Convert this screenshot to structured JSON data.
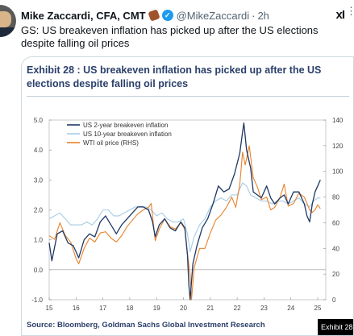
{
  "tweet": {
    "author_name": "Mike Zaccardi, CFA, CMT",
    "handle": "@MikeZaccardi",
    "separator": "·",
    "time": "2h",
    "grok_label": "xI",
    "text": "GS: US breakeven inflation has picked up after the US elections despite falling oil prices"
  },
  "icons": {
    "avatar": "avatar-photo",
    "emoji": "football-emoji",
    "verified": "verified-badge-icon",
    "grok": "grok-icon"
  },
  "colors": {
    "series_2y": "#1f3864",
    "series_10y": "#a7cce5",
    "series_oil": "#e8812a",
    "title": "#2a3f6a",
    "verified": "#1d9bf0"
  },
  "card": {
    "exhibit_title": "Exhibit 28 : US breakeven inflation has picked up after the US elections despite falling oil prices",
    "source": "Source: Bloomberg, Goldman Sachs Global Investment Research",
    "exhibit_tag": "Exhibit 28"
  },
  "chart_data": {
    "type": "line",
    "title": "",
    "xlabel": "",
    "ylabel": "",
    "x_ticks": [
      "15",
      "16",
      "17",
      "18",
      "19",
      "20",
      "21",
      "22",
      "23",
      "24",
      "25"
    ],
    "y_left_ticks": [
      "5.0",
      "4.0",
      "3.0",
      "2.0",
      "1.0",
      "0.0",
      "-1.0"
    ],
    "y_right_ticks": [
      "140",
      "120",
      "100",
      "80",
      "60",
      "40",
      "20",
      "0"
    ],
    "ylim_left": [
      -1,
      5
    ],
    "ylim_right": [
      0,
      140
    ],
    "xlim": [
      2015,
      2025.3
    ],
    "legend_position": "top-left",
    "grid": false,
    "series": [
      {
        "name": "US 2-year breakeven inflation",
        "axis": "left",
        "color": "#1f3864",
        "points": [
          [
            2015.0,
            0.9
          ],
          [
            2015.1,
            0.3
          ],
          [
            2015.3,
            1.2
          ],
          [
            2015.5,
            1.3
          ],
          [
            2015.7,
            0.9
          ],
          [
            2015.9,
            0.8
          ],
          [
            2016.0,
            0.6
          ],
          [
            2016.1,
            0.4
          ],
          [
            2016.3,
            1.0
          ],
          [
            2016.5,
            1.2
          ],
          [
            2016.7,
            1.1
          ],
          [
            2016.9,
            1.6
          ],
          [
            2017.1,
            1.8
          ],
          [
            2017.3,
            1.5
          ],
          [
            2017.5,
            1.2
          ],
          [
            2017.7,
            1.5
          ],
          [
            2017.9,
            1.7
          ],
          [
            2018.1,
            1.9
          ],
          [
            2018.3,
            2.1
          ],
          [
            2018.5,
            2.1
          ],
          [
            2018.7,
            2.0
          ],
          [
            2018.85,
            1.6
          ],
          [
            2018.95,
            1.1
          ],
          [
            2019.1,
            1.5
          ],
          [
            2019.3,
            1.7
          ],
          [
            2019.5,
            1.4
          ],
          [
            2019.7,
            1.3
          ],
          [
            2019.9,
            1.6
          ],
          [
            2020.05,
            1.4
          ],
          [
            2020.15,
            0.5
          ],
          [
            2020.2,
            -0.5
          ],
          [
            2020.25,
            -1.0
          ],
          [
            2020.35,
            0.2
          ],
          [
            2020.5,
            0.8
          ],
          [
            2020.7,
            1.4
          ],
          [
            2020.9,
            1.7
          ],
          [
            2021.1,
            2.2
          ],
          [
            2021.3,
            2.8
          ],
          [
            2021.5,
            2.6
          ],
          [
            2021.7,
            2.7
          ],
          [
            2021.9,
            3.2
          ],
          [
            2022.1,
            3.9
          ],
          [
            2022.2,
            4.6
          ],
          [
            2022.25,
            4.9
          ],
          [
            2022.35,
            4.0
          ],
          [
            2022.5,
            3.4
          ],
          [
            2022.6,
            2.6
          ],
          [
            2022.75,
            2.5
          ],
          [
            2022.9,
            2.4
          ],
          [
            2023.1,
            2.8
          ],
          [
            2023.25,
            2.4
          ],
          [
            2023.4,
            2.2
          ],
          [
            2023.6,
            2.4
          ],
          [
            2023.75,
            2.5
          ],
          [
            2023.9,
            2.2
          ],
          [
            2024.1,
            2.6
          ],
          [
            2024.3,
            2.6
          ],
          [
            2024.5,
            2.2
          ],
          [
            2024.6,
            1.8
          ],
          [
            2024.7,
            1.6
          ],
          [
            2024.8,
            2.2
          ],
          [
            2024.9,
            2.6
          ],
          [
            2025.0,
            2.8
          ],
          [
            2025.1,
            3.0
          ]
        ]
      },
      {
        "name": "US 10-year breakeven inflation",
        "axis": "left",
        "color": "#a7cce5",
        "points": [
          [
            2015.0,
            1.7
          ],
          [
            2015.2,
            1.8
          ],
          [
            2015.4,
            1.9
          ],
          [
            2015.6,
            1.7
          ],
          [
            2015.8,
            1.5
          ],
          [
            2016.0,
            1.5
          ],
          [
            2016.2,
            1.5
          ],
          [
            2016.4,
            1.6
          ],
          [
            2016.6,
            1.5
          ],
          [
            2016.8,
            1.7
          ],
          [
            2017.0,
            2.0
          ],
          [
            2017.2,
            2.0
          ],
          [
            2017.4,
            1.8
          ],
          [
            2017.6,
            1.8
          ],
          [
            2017.8,
            1.9
          ],
          [
            2018.0,
            2.0
          ],
          [
            2018.2,
            2.1
          ],
          [
            2018.4,
            2.1
          ],
          [
            2018.6,
            2.1
          ],
          [
            2018.8,
            2.0
          ],
          [
            2019.0,
            1.8
          ],
          [
            2019.2,
            1.9
          ],
          [
            2019.4,
            1.7
          ],
          [
            2019.6,
            1.6
          ],
          [
            2019.8,
            1.6
          ],
          [
            2020.0,
            1.7
          ],
          [
            2020.15,
            1.2
          ],
          [
            2020.25,
            0.6
          ],
          [
            2020.4,
            1.1
          ],
          [
            2020.6,
            1.5
          ],
          [
            2020.8,
            1.7
          ],
          [
            2021.0,
            2.1
          ],
          [
            2021.2,
            2.3
          ],
          [
            2021.4,
            2.4
          ],
          [
            2021.6,
            2.3
          ],
          [
            2021.8,
            2.5
          ],
          [
            2022.0,
            2.5
          ],
          [
            2022.2,
            2.9
          ],
          [
            2022.35,
            2.8
          ],
          [
            2022.5,
            2.5
          ],
          [
            2022.7,
            2.4
          ],
          [
            2022.9,
            2.3
          ],
          [
            2023.1,
            2.3
          ],
          [
            2023.3,
            2.2
          ],
          [
            2023.5,
            2.3
          ],
          [
            2023.7,
            2.3
          ],
          [
            2023.9,
            2.2
          ],
          [
            2024.1,
            2.3
          ],
          [
            2024.3,
            2.4
          ],
          [
            2024.5,
            2.2
          ],
          [
            2024.7,
            2.1
          ],
          [
            2024.85,
            2.3
          ],
          [
            2025.0,
            2.4
          ],
          [
            2025.1,
            2.4
          ]
        ]
      },
      {
        "name": "WTI oil price (RHS)",
        "axis": "right",
        "color": "#e8812a",
        "points": [
          [
            2015.0,
            50
          ],
          [
            2015.2,
            47
          ],
          [
            2015.4,
            60
          ],
          [
            2015.6,
            50
          ],
          [
            2015.8,
            45
          ],
          [
            2016.0,
            32
          ],
          [
            2016.1,
            28
          ],
          [
            2016.3,
            40
          ],
          [
            2016.5,
            48
          ],
          [
            2016.7,
            45
          ],
          [
            2016.9,
            52
          ],
          [
            2017.1,
            53
          ],
          [
            2017.3,
            48
          ],
          [
            2017.5,
            45
          ],
          [
            2017.7,
            50
          ],
          [
            2017.9,
            57
          ],
          [
            2018.1,
            62
          ],
          [
            2018.3,
            67
          ],
          [
            2018.5,
            70
          ],
          [
            2018.7,
            72
          ],
          [
            2018.8,
            75
          ],
          [
            2018.95,
            46
          ],
          [
            2019.1,
            55
          ],
          [
            2019.3,
            63
          ],
          [
            2019.5,
            57
          ],
          [
            2019.7,
            55
          ],
          [
            2019.9,
            60
          ],
          [
            2020.05,
            55
          ],
          [
            2020.15,
            35
          ],
          [
            2020.25,
            20
          ],
          [
            2020.3,
            0
          ],
          [
            2020.4,
            25
          ],
          [
            2020.6,
            40
          ],
          [
            2020.8,
            40
          ],
          [
            2021.0,
            52
          ],
          [
            2021.2,
            62
          ],
          [
            2021.4,
            66
          ],
          [
            2021.6,
            72
          ],
          [
            2021.8,
            80
          ],
          [
            2021.95,
            72
          ],
          [
            2022.1,
            90
          ],
          [
            2022.2,
            115
          ],
          [
            2022.3,
            105
          ],
          [
            2022.45,
            120
          ],
          [
            2022.6,
            95
          ],
          [
            2022.75,
            88
          ],
          [
            2022.9,
            78
          ],
          [
            2023.1,
            80
          ],
          [
            2023.25,
            70
          ],
          [
            2023.4,
            72
          ],
          [
            2023.6,
            80
          ],
          [
            2023.75,
            90
          ],
          [
            2023.9,
            73
          ],
          [
            2024.1,
            75
          ],
          [
            2024.3,
            83
          ],
          [
            2024.5,
            80
          ],
          [
            2024.7,
            70
          ],
          [
            2024.8,
            68
          ],
          [
            2024.9,
            70
          ],
          [
            2025.0,
            74
          ],
          [
            2025.1,
            71
          ]
        ]
      }
    ]
  }
}
